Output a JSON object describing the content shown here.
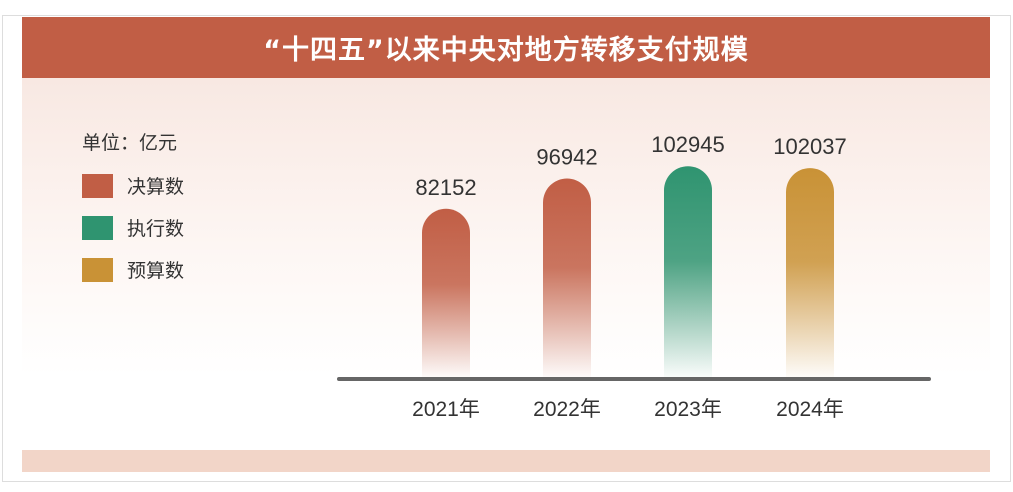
{
  "chart_data": {
    "type": "bar",
    "title": "“十四五”以来中央对地方转移支付规模",
    "unit_label": "单位：亿元",
    "categories": [
      "2021年",
      "2022年",
      "2023年",
      "2024年"
    ],
    "values": [
      82152,
      96942,
      102945,
      102037
    ],
    "value_labels": [
      "82152",
      "96942",
      "102945",
      "102037"
    ],
    "bar_types": [
      "决算数",
      "决算数",
      "执行数",
      "预算数"
    ],
    "legend": [
      {
        "label": "决算数",
        "color": "#c15e45"
      },
      {
        "label": "执行数",
        "color": "#2f9470"
      },
      {
        "label": "预算数",
        "color": "#c99236"
      }
    ],
    "ylim": [
      0,
      105000
    ],
    "grid": false,
    "legend_position": "left"
  }
}
